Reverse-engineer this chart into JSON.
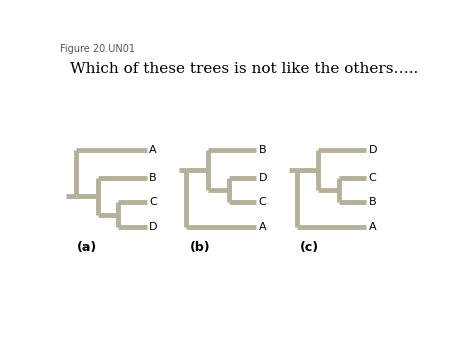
{
  "title": "Which of these trees is not like the others…..",
  "figure_label": "Figure 20.UN01",
  "background_color": "#ffffff",
  "tree_color": "#b5b09a",
  "line_width": 3.5,
  "title_fontsize": 11,
  "label_fontsize": 7,
  "leaf_fontsize": 8,
  "subfig_fontsize": 9,
  "trees": [
    {
      "label": "(a)",
      "topology": "a",
      "ox": 12,
      "oy": 88
    },
    {
      "label": "(b)",
      "topology": "b",
      "ox": 158,
      "oy": 88
    },
    {
      "label": "(c)",
      "topology": "c",
      "ox": 300,
      "oy": 88
    }
  ]
}
